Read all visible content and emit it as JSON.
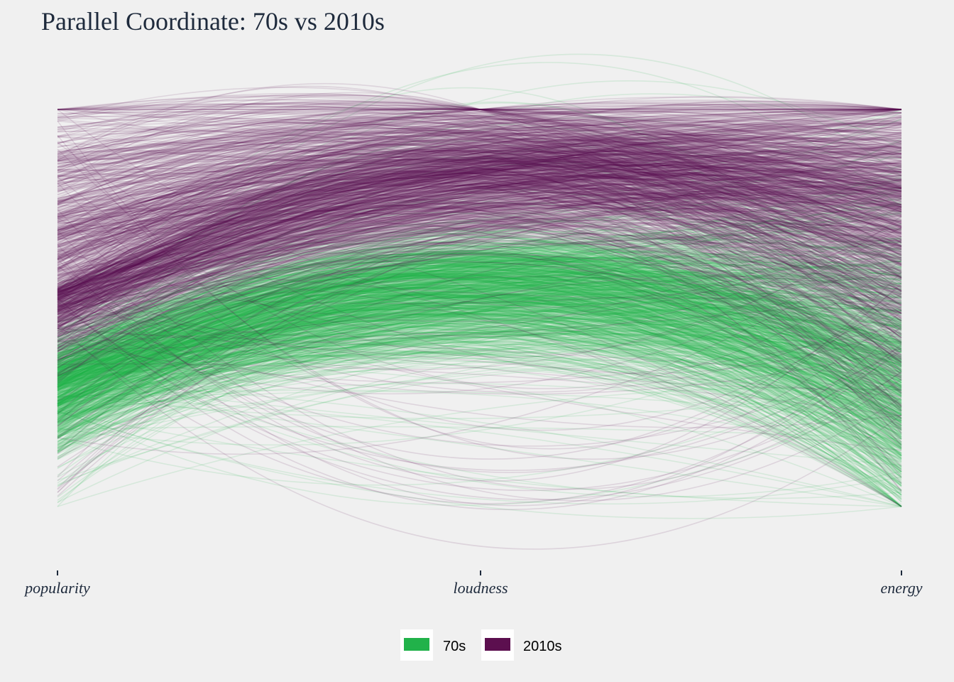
{
  "chart_data": {
    "type": "parallel-coordinates",
    "title": "Parallel Coordinate: 70s vs 2010s",
    "axes": [
      "popularity",
      "loudness",
      "energy"
    ],
    "value_range": [
      0,
      1
    ],
    "grid": false,
    "legend_position": "bottom",
    "line_shape": "curved",
    "line_opacity": 0.12,
    "series": [
      {
        "name": "70s",
        "color": "#21b24a",
        "line_count_approx": 1000,
        "profile": {
          "popularity": {
            "median": 0.3,
            "p10": 0.2,
            "p90": 0.39,
            "min": 0.0,
            "max": 0.57
          },
          "loudness": {
            "median": 0.55,
            "p10": 0.44,
            "p90": 0.64,
            "min": 0.0,
            "max": 1.11
          },
          "energy": {
            "median": 0.32,
            "p10": 0.12,
            "p90": 0.58,
            "min": 0.0,
            "max": 1.0
          }
        }
      },
      {
        "name": "2010s",
        "color": "#5c0f4f",
        "line_count_approx": 1000,
        "profile": {
          "popularity": {
            "median": 0.55,
            "p10": 0.45,
            "p90": 0.82,
            "min": 0.0,
            "max": 1.0
          },
          "loudness": {
            "median": 0.83,
            "p10": 0.74,
            "p90": 0.91,
            "min": -0.1,
            "max": 1.0
          },
          "energy": {
            "median": 0.74,
            "p10": 0.45,
            "p90": 0.93,
            "min": 0.0,
            "max": 1.0
          }
        }
      }
    ]
  }
}
